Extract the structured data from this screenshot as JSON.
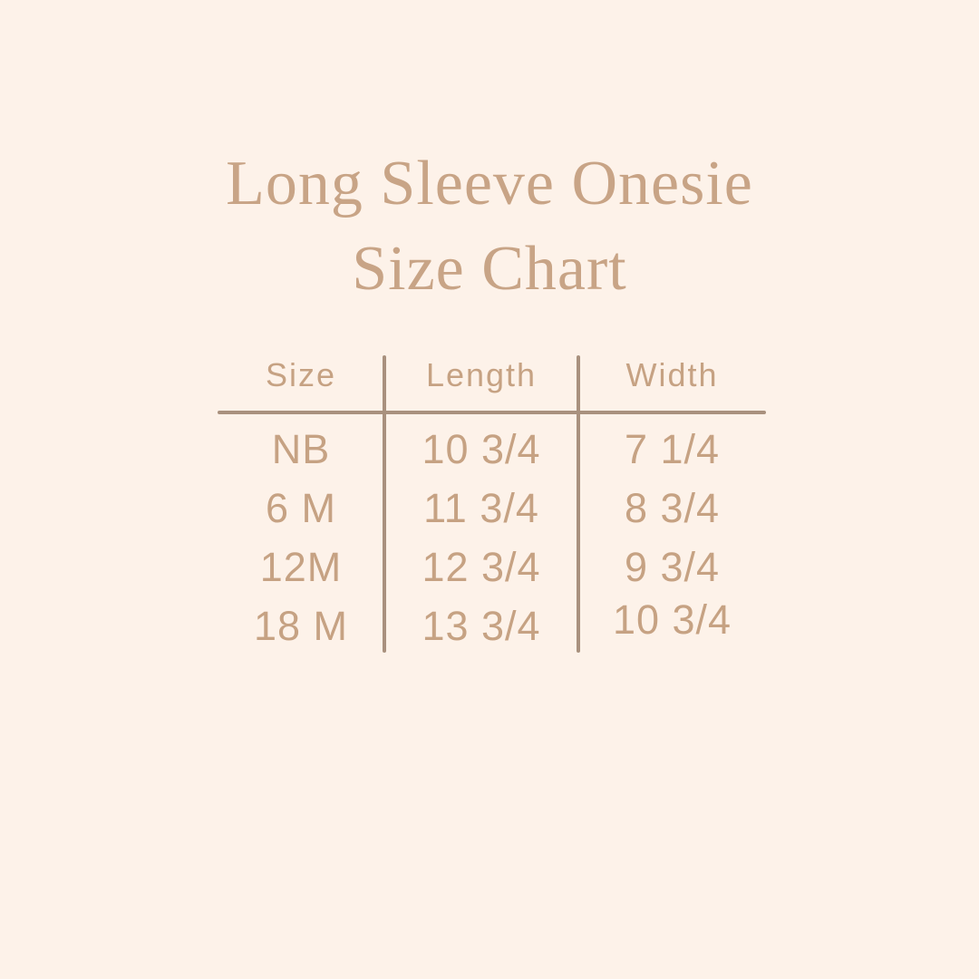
{
  "page": {
    "background_color": "#fdf2e9"
  },
  "title": {
    "line1": "Long Sleeve Onesie",
    "line2": "Size Chart",
    "color": "#c8a486"
  },
  "table": {
    "headers": [
      "Size",
      "Length",
      "Width"
    ],
    "rows": [
      [
        "NB",
        "10 3/4",
        "7 1/4"
      ],
      [
        "6 M",
        "11 3/4",
        "8 3/4"
      ],
      [
        "12M",
        "12 3/4",
        "9 3/4"
      ],
      [
        "18 M",
        "13 3/4",
        "10 3/4"
      ]
    ],
    "text_color": "#c6a283",
    "divider_line_color": "#a9917e"
  },
  "chart_data": {
    "type": "table",
    "title": "Long Sleeve Onesie Size Chart",
    "columns": [
      "Size",
      "Length",
      "Width"
    ],
    "rows": [
      [
        "NB",
        "10 3/4",
        "7 1/4"
      ],
      [
        "6 M",
        "11 3/4",
        "8 3/4"
      ],
      [
        "12M",
        "12 3/4",
        "9 3/4"
      ],
      [
        "18 M",
        "13 3/4",
        "10 3/4"
      ]
    ]
  }
}
